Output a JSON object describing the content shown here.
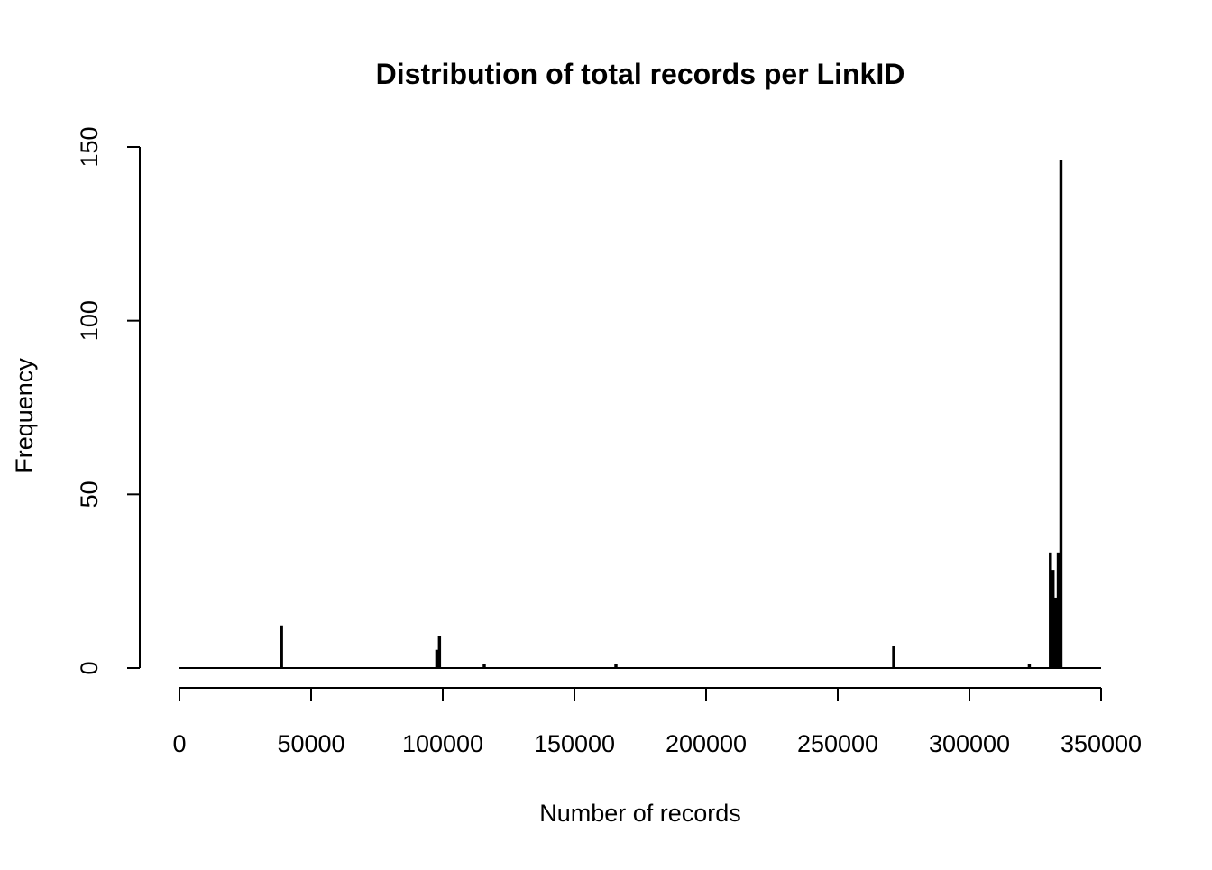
{
  "chart_data": {
    "type": "bar",
    "title": "Distribution of total records per LinkID",
    "xlabel": "Number of records",
    "ylabel": "Frequency",
    "xlim": [
      0,
      350000
    ],
    "ylim": [
      0,
      150
    ],
    "x_ticks": [
      "0",
      "50000",
      "100000",
      "150000",
      "200000",
      "250000",
      "300000",
      "350000"
    ],
    "y_ticks": [
      "0",
      "50",
      "100",
      "150"
    ],
    "x_tick_values": [
      0,
      50000,
      100000,
      150000,
      200000,
      250000,
      300000,
      350000
    ],
    "y_tick_values": [
      0,
      50,
      100,
      150
    ],
    "bin_width": 500,
    "bins": [
      {
        "x": 38500,
        "count": 12
      },
      {
        "x": 97500,
        "count": 5
      },
      {
        "x": 98500,
        "count": 9
      },
      {
        "x": 115500,
        "count": 1
      },
      {
        "x": 165500,
        "count": 1
      },
      {
        "x": 271000,
        "count": 6
      },
      {
        "x": 322500,
        "count": 1
      },
      {
        "x": 330500,
        "count": 33
      },
      {
        "x": 331500,
        "count": 28
      },
      {
        "x": 332500,
        "count": 20
      },
      {
        "x": 333500,
        "count": 33
      },
      {
        "x": 334500,
        "count": 146
      }
    ],
    "grid": false,
    "colors": {
      "bar_fill": "#ffffff",
      "bar_stroke": "#000000",
      "background": "#ffffff"
    }
  }
}
